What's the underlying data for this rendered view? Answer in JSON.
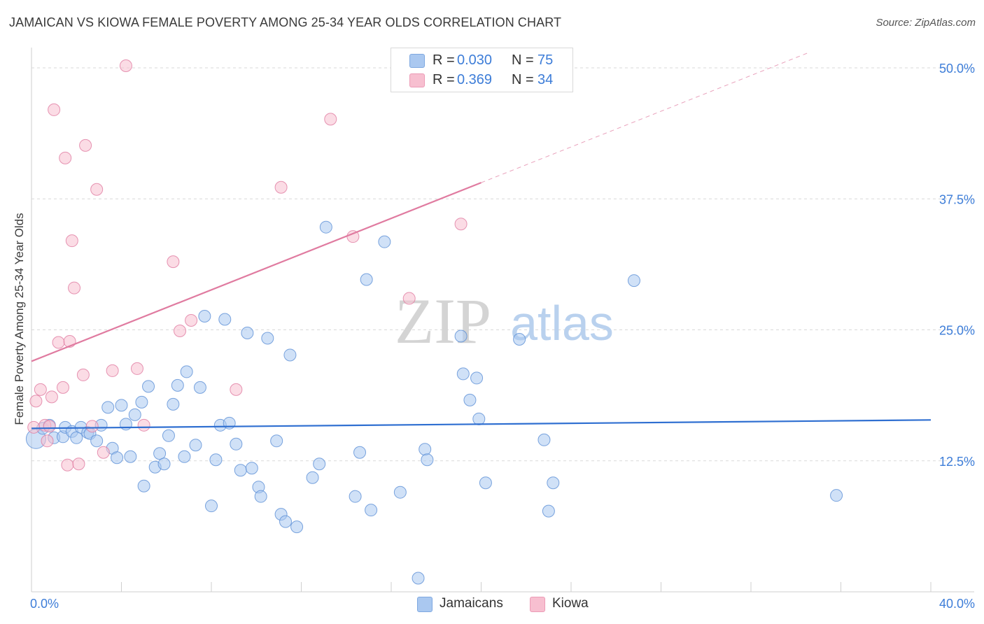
{
  "title": "JAMAICAN VS KIOWA FEMALE POVERTY AMONG 25-34 YEAR OLDS CORRELATION CHART",
  "source": "Source: ZipAtlas.com",
  "watermark": {
    "zip": "ZIP",
    "atlas": "atlas"
  },
  "legend": {
    "rows": [
      {
        "r_label": "R =",
        "r_value": "0.030",
        "n_label": "N =",
        "n_value": "75",
        "color": "#aac8f0"
      },
      {
        "r_label": "R =",
        "r_value": "0.369",
        "n_label": "N =",
        "n_value": "34",
        "color": "#f7bfd0"
      }
    ]
  },
  "bottom_legend": {
    "series": [
      {
        "name": "Jamaicans",
        "color": "#aac8f0"
      },
      {
        "name": "Kiowa",
        "color": "#f7bfd0"
      }
    ]
  },
  "chart_data": {
    "type": "scatter",
    "title": "JAMAICAN VS KIOWA FEMALE POVERTY AMONG 25-34 YEAR OLDS CORRELATION CHART",
    "xlabel": "",
    "ylabel": "Female Poverty Among 25-34 Year Olds",
    "xlim": [
      0,
      40
    ],
    "ylim": [
      0,
      50
    ],
    "x_tick_labels": [
      "0.0%",
      "40.0%"
    ],
    "y_ticks": [
      12.5,
      25.0,
      37.5,
      50.0
    ],
    "y_tick_labels": [
      "12.5%",
      "25.0%",
      "37.5%",
      "50.0%"
    ],
    "grid": true,
    "legend_position": "top-center",
    "series": [
      {
        "name": "Jamaicans",
        "color": "#5b8fd6",
        "fill": "#aac8f0",
        "trend": {
          "x": [
            0,
            40
          ],
          "y": [
            15.6,
            16.4
          ],
          "dashed_from": null
        },
        "points": [
          [
            0.2,
            14.6
          ],
          [
            0.5,
            15.6
          ],
          [
            0.8,
            15.9
          ],
          [
            1.0,
            14.7
          ],
          [
            1.4,
            14.8
          ],
          [
            1.5,
            15.7
          ],
          [
            1.8,
            15.3
          ],
          [
            2.0,
            14.7
          ],
          [
            2.2,
            15.7
          ],
          [
            2.5,
            15.2
          ],
          [
            2.6,
            15.1
          ],
          [
            2.9,
            14.4
          ],
          [
            3.1,
            15.9
          ],
          [
            3.4,
            17.6
          ],
          [
            3.6,
            13.7
          ],
          [
            3.8,
            12.8
          ],
          [
            4.0,
            17.8
          ],
          [
            4.2,
            16.0
          ],
          [
            4.4,
            12.9
          ],
          [
            4.6,
            16.9
          ],
          [
            4.9,
            18.1
          ],
          [
            5.0,
            10.1
          ],
          [
            5.2,
            19.6
          ],
          [
            5.5,
            11.9
          ],
          [
            5.7,
            13.2
          ],
          [
            5.9,
            12.2
          ],
          [
            6.1,
            14.9
          ],
          [
            6.3,
            17.9
          ],
          [
            6.5,
            19.7
          ],
          [
            6.8,
            12.9
          ],
          [
            6.9,
            21.0
          ],
          [
            7.3,
            14.0
          ],
          [
            7.5,
            19.5
          ],
          [
            7.7,
            26.3
          ],
          [
            8.0,
            8.2
          ],
          [
            8.2,
            12.6
          ],
          [
            8.4,
            15.9
          ],
          [
            8.6,
            26.0
          ],
          [
            8.8,
            16.1
          ],
          [
            9.1,
            14.1
          ],
          [
            9.3,
            11.6
          ],
          [
            9.6,
            24.7
          ],
          [
            9.8,
            11.8
          ],
          [
            10.1,
            10.0
          ],
          [
            10.2,
            9.1
          ],
          [
            10.5,
            24.2
          ],
          [
            10.9,
            14.4
          ],
          [
            11.1,
            7.4
          ],
          [
            11.3,
            6.7
          ],
          [
            11.5,
            22.6
          ],
          [
            11.8,
            6.2
          ],
          [
            12.5,
            10.9
          ],
          [
            12.8,
            12.2
          ],
          [
            13.1,
            34.8
          ],
          [
            14.4,
            9.1
          ],
          [
            14.6,
            13.3
          ],
          [
            14.9,
            29.8
          ],
          [
            15.1,
            7.8
          ],
          [
            15.7,
            33.4
          ],
          [
            16.4,
            9.5
          ],
          [
            17.2,
            1.3
          ],
          [
            17.5,
            13.6
          ],
          [
            17.6,
            12.6
          ],
          [
            19.1,
            24.4
          ],
          [
            19.2,
            20.8
          ],
          [
            19.5,
            18.3
          ],
          [
            19.8,
            20.4
          ],
          [
            19.9,
            16.5
          ],
          [
            20.2,
            10.4
          ],
          [
            21.7,
            24.1
          ],
          [
            22.8,
            14.5
          ],
          [
            23.0,
            7.7
          ],
          [
            23.2,
            10.4
          ],
          [
            26.8,
            29.7
          ],
          [
            35.8,
            9.2
          ]
        ]
      },
      {
        "name": "Kiowa",
        "color": "#e07ba0",
        "fill": "#f7bfd0",
        "trend": {
          "x": [
            0,
            34.5
          ],
          "y": [
            22.0,
            51.4
          ],
          "dashed_from": 20.0
        },
        "points": [
          [
            0.1,
            15.7
          ],
          [
            0.2,
            18.2
          ],
          [
            0.4,
            19.3
          ],
          [
            0.6,
            15.9
          ],
          [
            0.7,
            14.4
          ],
          [
            0.8,
            15.8
          ],
          [
            0.9,
            18.6
          ],
          [
            1.0,
            46.0
          ],
          [
            1.2,
            23.8
          ],
          [
            1.4,
            19.5
          ],
          [
            1.5,
            41.4
          ],
          [
            1.6,
            12.1
          ],
          [
            1.7,
            23.9
          ],
          [
            1.8,
            33.5
          ],
          [
            1.9,
            29.0
          ],
          [
            2.1,
            12.2
          ],
          [
            2.3,
            20.7
          ],
          [
            2.4,
            42.6
          ],
          [
            2.7,
            15.8
          ],
          [
            2.9,
            38.4
          ],
          [
            3.2,
            13.3
          ],
          [
            3.6,
            21.1
          ],
          [
            4.7,
            21.3
          ],
          [
            5.0,
            15.9
          ],
          [
            6.3,
            31.5
          ],
          [
            6.6,
            24.9
          ],
          [
            7.1,
            25.9
          ],
          [
            9.1,
            19.3
          ],
          [
            4.2,
            50.2
          ],
          [
            11.1,
            38.6
          ],
          [
            13.3,
            45.1
          ],
          [
            14.3,
            33.9
          ],
          [
            16.8,
            28.0
          ],
          [
            19.1,
            35.1
          ]
        ]
      }
    ]
  }
}
